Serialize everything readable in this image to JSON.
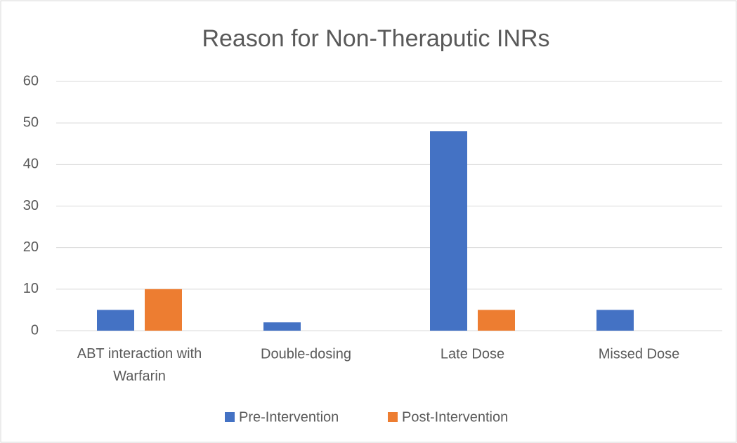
{
  "chart_data": {
    "type": "bar",
    "title": "Reason for Non-Theraputic INRs",
    "categories": [
      "ABT interaction with Warfarin",
      "Double-dosing",
      "Late Dose",
      "Missed Dose"
    ],
    "series": [
      {
        "name": "Pre-Intervention",
        "color": "#4472c4",
        "values": [
          5,
          2,
          48,
          5
        ]
      },
      {
        "name": "Post-Intervention",
        "color": "#ed7d31",
        "values": [
          10,
          0,
          5,
          0
        ]
      }
    ],
    "ylim": [
      0,
      60
    ],
    "yticks": [
      0,
      10,
      20,
      30,
      40,
      50,
      60
    ],
    "grid": true,
    "legend": "bottom"
  }
}
